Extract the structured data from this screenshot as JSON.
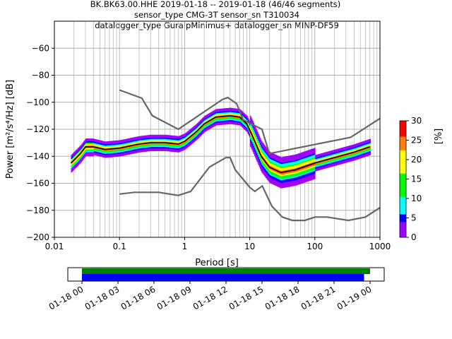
{
  "chart_data": {
    "type": "heatmap",
    "title_lines": [
      "BK.BK63.00.HHE   2019-01-18 -- 2019-01-18  (46/46 segments)",
      "sensor_type CMG-3T sensor_sn T310034",
      "datalogger_type GuralpMinimus+ datalogger_sn MINP-DF59"
    ],
    "xlabel": "Period [s]",
    "ylabel": "Power [m²/s⁴/Hz] [dB]",
    "xscale": "log",
    "xlim": [
      0.01,
      1000
    ],
    "ylim": [
      -200,
      -40
    ],
    "xticks": [
      0.01,
      0.1,
      1,
      10,
      100,
      1000
    ],
    "xtick_labels": [
      "0.01",
      "0.1",
      "1",
      "10",
      "100",
      "1000"
    ],
    "yticks": [
      -200,
      -180,
      -160,
      -140,
      -120,
      -100,
      -80,
      -60
    ],
    "ytick_labels": [
      "−200",
      "−180",
      "−160",
      "−140",
      "−120",
      "−100",
      "−80",
      "−60"
    ],
    "grid": true,
    "mean_curve": {
      "period": [
        0.018,
        0.025,
        0.03,
        0.04,
        0.06,
        0.1,
        0.2,
        0.3,
        0.5,
        0.8,
        1,
        1.5,
        2,
        3,
        5,
        7,
        9,
        11,
        15,
        20,
        30,
        50,
        100,
        200,
        400,
        700
      ],
      "db": [
        -145,
        -138,
        -133,
        -133,
        -135,
        -134,
        -131,
        -130,
        -130,
        -131,
        -129,
        -122,
        -116,
        -111,
        -110,
        -111,
        -116,
        -125,
        -140,
        -148,
        -152,
        -150,
        -145,
        -141,
        -137,
        -133
      ]
    },
    "nhnm": {
      "period": [
        0.1,
        0.22,
        0.32,
        0.8,
        3.8,
        4.6,
        6.3,
        7.9,
        15.4,
        20,
        354,
        1000
      ],
      "db": [
        -91,
        -97,
        -110,
        -120,
        -98,
        -96.5,
        -101,
        -113,
        -120,
        -138,
        -126,
        -112
      ]
    },
    "nlnm": {
      "period": [
        0.1,
        0.17,
        0.4,
        0.8,
        1.24,
        2.4,
        4.3,
        5,
        6,
        10,
        12,
        15.6,
        21.9,
        31.6,
        45,
        70,
        101,
        154,
        328,
        600,
        1000
      ],
      "db": [
        -168,
        -166.7,
        -166.7,
        -169,
        -166,
        -148,
        -141,
        -141,
        -150,
        -163,
        -166,
        -162,
        -177,
        -185,
        -187.5,
        -187.5,
        -185,
        -185,
        -187.5,
        -185,
        -178
      ]
    },
    "colorbar": {
      "label": "[%]",
      "range": [
        0,
        30
      ],
      "ticks": [
        0,
        5,
        10,
        15,
        20,
        25,
        30
      ],
      "tick_labels": [
        "0",
        "5",
        "10",
        "15",
        "20",
        "25",
        "30"
      ]
    },
    "coverage": {
      "tick_labels": [
        "01-18 00",
        "01-18 03",
        "01-18 06",
        "01-18 09",
        "01-18 12",
        "01-18 15",
        "01-18 18",
        "01-18 21",
        "01-19 00"
      ],
      "green_range_hours": [
        0,
        24
      ],
      "blue_range_hours": [
        0,
        23.5
      ],
      "colors": {
        "green": "#008000",
        "blue": "#0000ff"
      }
    }
  }
}
